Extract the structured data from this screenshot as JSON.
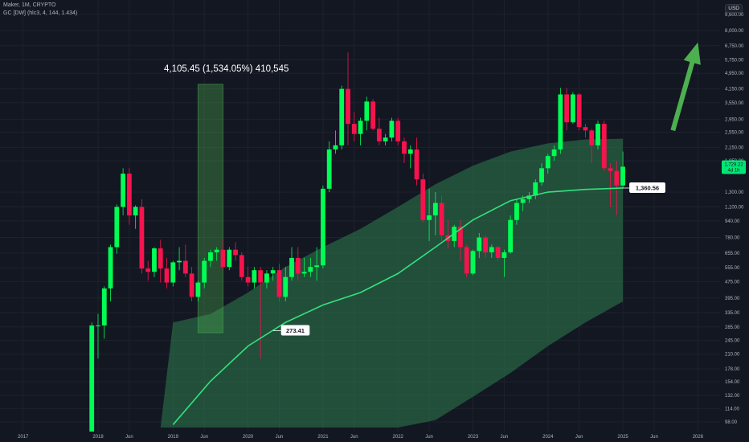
{
  "header": {
    "symbol_line": "Maker, 1M, CRYPTO",
    "indicator_line": "GC [DW] (hlc3, 4, 144, 1.434)"
  },
  "measure_label": "4,105.45 (1,534.05%) 410,545",
  "currency": "USD",
  "price_badge": {
    "value": "1,729.22",
    "countdown": "4d 1h",
    "color": "#00e676"
  },
  "colors": {
    "background": "#131722",
    "up_candle": "#00ff55",
    "down_candle": "#f7134d",
    "channel_fill": "#2e7d4f",
    "channel_line": "#33e27d",
    "arrow": "#4caf50"
  },
  "chart_data": {
    "type": "candlestick",
    "scale": "log",
    "ylim": [
      92,
      11000
    ],
    "y_ticks": [
      "9,600.00",
      "8,000.00",
      "6,750.00",
      "5,750.00",
      "4,950.00",
      "4,150.00",
      "3,550.00",
      "2,950.00",
      "2,550.00",
      "2,150.00",
      "1,850.00",
      "1,300.00",
      "1,100.00",
      "940.00",
      "780.00",
      "655.00",
      "555.00",
      "475.00",
      "395.00",
      "335.00",
      "285.00",
      "245.00",
      "210.00",
      "178.00",
      "154.00",
      "132.00",
      "114.00",
      "98.00"
    ],
    "x_ticks": [
      "2017",
      "2018",
      "Jun",
      "2019",
      "Jun",
      "2020",
      "Jun",
      "2021",
      "Jun",
      "2022",
      "Jun",
      "2023",
      "Jun",
      "2024",
      "Jun",
      "2025",
      "Jun",
      "2026"
    ],
    "candles": [
      {
        "date": "2017-12",
        "o": 10,
        "h": 300,
        "l": 10,
        "c": 290
      },
      {
        "date": "2018-01",
        "o": 290,
        "h": 330,
        "l": 200,
        "c": 290
      },
      {
        "date": "2018-02",
        "o": 290,
        "h": 450,
        "l": 250,
        "c": 440
      },
      {
        "date": "2018-03",
        "o": 440,
        "h": 720,
        "l": 380,
        "c": 700
      },
      {
        "date": "2018-04",
        "o": 700,
        "h": 1130,
        "l": 650,
        "c": 1100
      },
      {
        "date": "2018-05",
        "o": 1100,
        "h": 1700,
        "l": 1000,
        "c": 1600
      },
      {
        "date": "2018-06",
        "o": 1600,
        "h": 1700,
        "l": 900,
        "c": 1000
      },
      {
        "date": "2018-07",
        "o": 1000,
        "h": 1120,
        "l": 860,
        "c": 1100
      },
      {
        "date": "2018-08",
        "o": 1100,
        "h": 1200,
        "l": 520,
        "c": 550
      },
      {
        "date": "2018-09",
        "o": 550,
        "h": 600,
        "l": 480,
        "c": 530
      },
      {
        "date": "2018-10",
        "o": 530,
        "h": 700,
        "l": 500,
        "c": 690
      },
      {
        "date": "2018-11",
        "o": 690,
        "h": 760,
        "l": 470,
        "c": 550
      },
      {
        "date": "2018-12",
        "o": 550,
        "h": 620,
        "l": 440,
        "c": 470
      },
      {
        "date": "2019-01",
        "o": 470,
        "h": 600,
        "l": 450,
        "c": 590
      },
      {
        "date": "2019-02",
        "o": 590,
        "h": 700,
        "l": 540,
        "c": 600
      },
      {
        "date": "2019-03",
        "o": 600,
        "h": 720,
        "l": 500,
        "c": 520
      },
      {
        "date": "2019-04",
        "o": 520,
        "h": 560,
        "l": 380,
        "c": 400
      },
      {
        "date": "2019-05",
        "o": 400,
        "h": 480,
        "l": 380,
        "c": 470
      },
      {
        "date": "2019-06",
        "o": 470,
        "h": 620,
        "l": 440,
        "c": 600
      },
      {
        "date": "2019-07",
        "o": 600,
        "h": 680,
        "l": 560,
        "c": 660
      },
      {
        "date": "2019-08",
        "o": 660,
        "h": 700,
        "l": 600,
        "c": 680
      },
      {
        "date": "2019-09",
        "o": 680,
        "h": 760,
        "l": 540,
        "c": 560
      },
      {
        "date": "2019-10",
        "o": 560,
        "h": 700,
        "l": 540,
        "c": 680
      },
      {
        "date": "2019-11",
        "o": 680,
        "h": 740,
        "l": 600,
        "c": 640
      },
      {
        "date": "2019-12",
        "o": 640,
        "h": 660,
        "l": 480,
        "c": 500
      },
      {
        "date": "2020-01",
        "o": 500,
        "h": 560,
        "l": 450,
        "c": 470
      },
      {
        "date": "2020-02",
        "o": 470,
        "h": 560,
        "l": 440,
        "c": 540
      },
      {
        "date": "2020-03",
        "o": 540,
        "h": 560,
        "l": 200,
        "c": 470
      },
      {
        "date": "2020-04",
        "o": 470,
        "h": 540,
        "l": 440,
        "c": 520
      },
      {
        "date": "2020-05",
        "o": 520,
        "h": 560,
        "l": 480,
        "c": 540
      },
      {
        "date": "2020-06",
        "o": 540,
        "h": 580,
        "l": 380,
        "c": 400
      },
      {
        "date": "2020-07",
        "o": 400,
        "h": 560,
        "l": 380,
        "c": 500
      },
      {
        "date": "2020-08",
        "o": 500,
        "h": 700,
        "l": 480,
        "c": 620
      },
      {
        "date": "2020-09",
        "o": 620,
        "h": 700,
        "l": 480,
        "c": 520
      },
      {
        "date": "2020-10",
        "o": 520,
        "h": 620,
        "l": 500,
        "c": 530
      },
      {
        "date": "2020-11",
        "o": 530,
        "h": 620,
        "l": 500,
        "c": 560
      },
      {
        "date": "2020-12",
        "o": 560,
        "h": 700,
        "l": 480,
        "c": 570
      },
      {
        "date": "2021-01",
        "o": 570,
        "h": 1400,
        "l": 550,
        "c": 1350
      },
      {
        "date": "2021-02",
        "o": 1350,
        "h": 2300,
        "l": 1300,
        "c": 2100
      },
      {
        "date": "2021-03",
        "o": 2100,
        "h": 2600,
        "l": 2000,
        "c": 2200
      },
      {
        "date": "2021-04",
        "o": 2200,
        "h": 4300,
        "l": 2100,
        "c": 4150
      },
      {
        "date": "2021-05",
        "o": 4150,
        "h": 6250,
        "l": 2200,
        "c": 2800
      },
      {
        "date": "2021-06",
        "o": 2800,
        "h": 3200,
        "l": 2300,
        "c": 2500
      },
      {
        "date": "2021-07",
        "o": 2500,
        "h": 3000,
        "l": 2200,
        "c": 2900
      },
      {
        "date": "2021-08",
        "o": 2900,
        "h": 3800,
        "l": 2600,
        "c": 3600
      },
      {
        "date": "2021-09",
        "o": 3600,
        "h": 3700,
        "l": 2600,
        "c": 2650
      },
      {
        "date": "2021-10",
        "o": 2650,
        "h": 3000,
        "l": 2200,
        "c": 2300
      },
      {
        "date": "2021-11",
        "o": 2300,
        "h": 2500,
        "l": 2200,
        "c": 2400
      },
      {
        "date": "2021-12",
        "o": 2400,
        "h": 3000,
        "l": 2300,
        "c": 2900
      },
      {
        "date": "2022-01",
        "o": 2900,
        "h": 3000,
        "l": 2200,
        "c": 2300
      },
      {
        "date": "2022-02",
        "o": 2300,
        "h": 2400,
        "l": 1800,
        "c": 2000
      },
      {
        "date": "2022-03",
        "o": 2000,
        "h": 2200,
        "l": 1700,
        "c": 2100
      },
      {
        "date": "2022-04",
        "o": 2100,
        "h": 2400,
        "l": 1400,
        "c": 1500
      },
      {
        "date": "2022-05",
        "o": 1500,
        "h": 1600,
        "l": 920,
        "c": 950
      },
      {
        "date": "2022-06",
        "o": 950,
        "h": 1350,
        "l": 750,
        "c": 1000
      },
      {
        "date": "2022-07",
        "o": 1000,
        "h": 1300,
        "l": 800,
        "c": 1150
      },
      {
        "date": "2022-08",
        "o": 1150,
        "h": 1250,
        "l": 750,
        "c": 800
      },
      {
        "date": "2022-09",
        "o": 800,
        "h": 950,
        "l": 690,
        "c": 750
      },
      {
        "date": "2022-10",
        "o": 750,
        "h": 900,
        "l": 700,
        "c": 880
      },
      {
        "date": "2022-11",
        "o": 880,
        "h": 950,
        "l": 600,
        "c": 700
      },
      {
        "date": "2022-12",
        "o": 700,
        "h": 720,
        "l": 500,
        "c": 520
      },
      {
        "date": "2023-01",
        "o": 520,
        "h": 680,
        "l": 510,
        "c": 670
      },
      {
        "date": "2023-02",
        "o": 670,
        "h": 820,
        "l": 620,
        "c": 780
      },
      {
        "date": "2023-03",
        "o": 780,
        "h": 800,
        "l": 620,
        "c": 660
      },
      {
        "date": "2023-04",
        "o": 660,
        "h": 720,
        "l": 620,
        "c": 700
      },
      {
        "date": "2023-05",
        "o": 700,
        "h": 710,
        "l": 600,
        "c": 620
      },
      {
        "date": "2023-06",
        "o": 620,
        "h": 680,
        "l": 500,
        "c": 660
      },
      {
        "date": "2023-07",
        "o": 660,
        "h": 1000,
        "l": 650,
        "c": 950
      },
      {
        "date": "2023-08",
        "o": 950,
        "h": 1200,
        "l": 900,
        "c": 1150
      },
      {
        "date": "2023-09",
        "o": 1150,
        "h": 1250,
        "l": 1050,
        "c": 1200
      },
      {
        "date": "2023-10",
        "o": 1200,
        "h": 1300,
        "l": 1150,
        "c": 1250
      },
      {
        "date": "2023-11",
        "o": 1250,
        "h": 1500,
        "l": 1200,
        "c": 1450
      },
      {
        "date": "2023-12",
        "o": 1450,
        "h": 1800,
        "l": 1400,
        "c": 1700
      },
      {
        "date": "2024-01",
        "o": 1700,
        "h": 2000,
        "l": 1600,
        "c": 1950
      },
      {
        "date": "2024-02",
        "o": 1950,
        "h": 2200,
        "l": 1850,
        "c": 2100
      },
      {
        "date": "2024-03",
        "o": 2100,
        "h": 4200,
        "l": 2000,
        "c": 3900
      },
      {
        "date": "2024-04",
        "o": 3900,
        "h": 4200,
        "l": 2600,
        "c": 2850
      },
      {
        "date": "2024-05",
        "o": 2850,
        "h": 4000,
        "l": 2800,
        "c": 3900
      },
      {
        "date": "2024-06",
        "o": 3900,
        "h": 3950,
        "l": 2600,
        "c": 2700
      },
      {
        "date": "2024-07",
        "o": 2700,
        "h": 2800,
        "l": 2400,
        "c": 2600
      },
      {
        "date": "2024-08",
        "o": 2600,
        "h": 2650,
        "l": 1800,
        "c": 2200
      },
      {
        "date": "2024-09",
        "o": 2200,
        "h": 2900,
        "l": 2100,
        "c": 2800
      },
      {
        "date": "2024-10",
        "o": 2800,
        "h": 2900,
        "l": 1650,
        "c": 1700
      },
      {
        "date": "2024-11",
        "o": 1700,
        "h": 1800,
        "l": 1100,
        "c": 1650
      },
      {
        "date": "2024-12",
        "o": 1650,
        "h": 1850,
        "l": 1000,
        "c": 1400
      },
      {
        "date": "2025-01",
        "o": 1400,
        "h": 2050,
        "l": 1350,
        "c": 1729.22
      }
    ],
    "measure_box": {
      "start": "2019-05",
      "end": "2019-09",
      "low": 267,
      "high": 4372
    },
    "mid_line": [
      {
        "date": "2019-01",
        "v": 95
      },
      {
        "date": "2019-07",
        "v": 155
      },
      {
        "date": "2020-01",
        "v": 230
      },
      {
        "date": "2020-07",
        "v": 300
      },
      {
        "date": "2021-01",
        "v": 365
      },
      {
        "date": "2021-07",
        "v": 420
      },
      {
        "date": "2022-01",
        "v": 520
      },
      {
        "date": "2022-07",
        "v": 700
      },
      {
        "date": "2023-01",
        "v": 950
      },
      {
        "date": "2023-07",
        "v": 1180
      },
      {
        "date": "2024-01",
        "v": 1300
      },
      {
        "date": "2024-07",
        "v": 1340
      },
      {
        "date": "2025-01",
        "v": 1360.56
      }
    ],
    "upper_band": [
      {
        "date": "2019-01",
        "v": 300
      },
      {
        "date": "2019-07",
        "v": 330
      },
      {
        "date": "2020-01",
        "v": 420
      },
      {
        "date": "2020-07",
        "v": 560
      },
      {
        "date": "2021-01",
        "v": 700
      },
      {
        "date": "2021-07",
        "v": 860
      },
      {
        "date": "2022-01",
        "v": 1100
      },
      {
        "date": "2022-07",
        "v": 1420
      },
      {
        "date": "2023-01",
        "v": 1750
      },
      {
        "date": "2023-07",
        "v": 2050
      },
      {
        "date": "2024-01",
        "v": 2250
      },
      {
        "date": "2024-07",
        "v": 2350
      },
      {
        "date": "2025-01",
        "v": 2370
      }
    ],
    "lower_band": [
      {
        "date": "2018-11",
        "v": 92
      },
      {
        "date": "2019-07",
        "v": 92
      },
      {
        "date": "2020-01",
        "v": 92
      },
      {
        "date": "2020-07",
        "v": 92
      },
      {
        "date": "2021-01",
        "v": 92
      },
      {
        "date": "2021-07",
        "v": 92
      },
      {
        "date": "2022-01",
        "v": 92
      },
      {
        "date": "2022-07",
        "v": 100
      },
      {
        "date": "2023-01",
        "v": 130
      },
      {
        "date": "2023-07",
        "v": 170
      },
      {
        "date": "2024-01",
        "v": 230
      },
      {
        "date": "2024-07",
        "v": 300
      },
      {
        "date": "2025-01",
        "v": 380
      }
    ],
    "labels": [
      {
        "text": "273.41",
        "date": "2020-05",
        "v": 273.41
      },
      {
        "text": "1,360.56",
        "date": "2025-01",
        "v": 1360.56
      }
    ],
    "arrow": {
      "from_date": "2025-09",
      "from_v": 2600,
      "to_date": "2026-01",
      "to_v": 7000
    }
  }
}
